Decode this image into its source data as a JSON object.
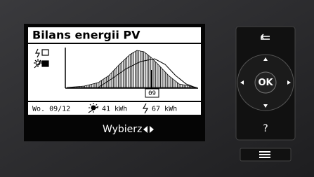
{
  "screen": {
    "title": "Bilans energii PV",
    "marker": "09",
    "date": "Wo. 09/12",
    "produced": "41 kWh",
    "consumed": "67 kWh",
    "softkey": "Wybierz"
  },
  "controls": {
    "ok": "OK",
    "help": "?"
  }
}
